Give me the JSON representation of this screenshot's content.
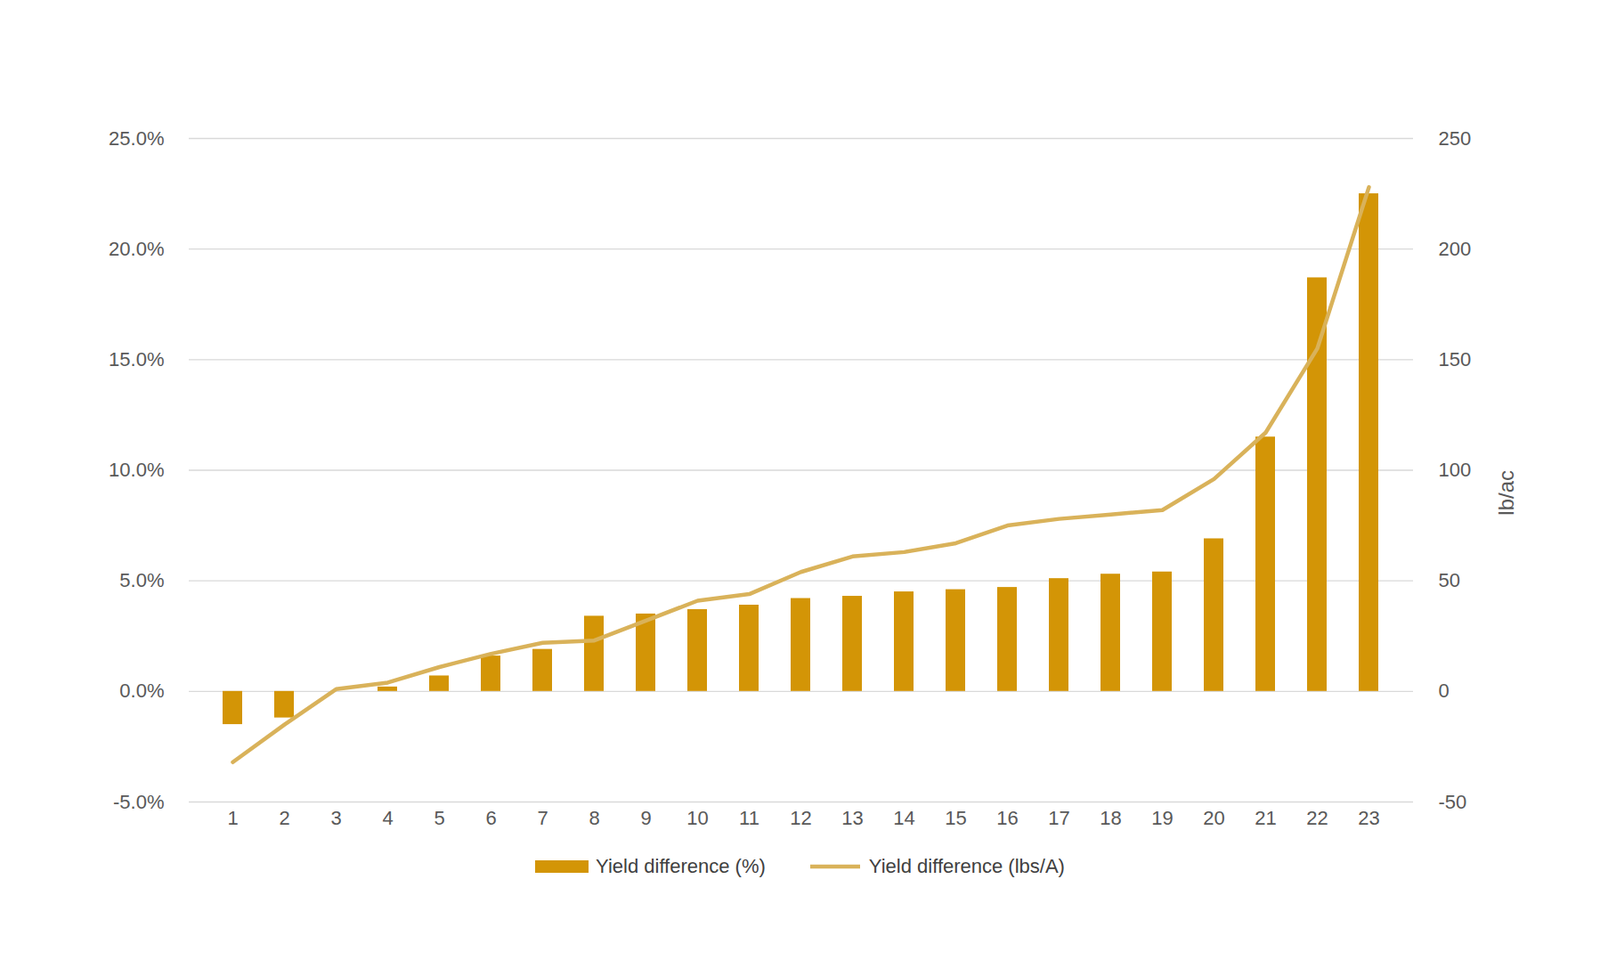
{
  "chart_data": {
    "type": "bar",
    "categories": [
      "1",
      "2",
      "3",
      "4",
      "5",
      "6",
      "7",
      "8",
      "9",
      "10",
      "11",
      "12",
      "13",
      "14",
      "15",
      "16",
      "17",
      "18",
      "19",
      "20",
      "21",
      "22",
      "23"
    ],
    "series": [
      {
        "name": "Yield difference (%)",
        "type": "bar",
        "color": "#D39506",
        "values": [
          -1.5,
          -1.2,
          0.0,
          0.2,
          0.7,
          1.6,
          1.9,
          3.4,
          3.5,
          3.7,
          3.9,
          4.2,
          4.3,
          4.5,
          4.6,
          4.7,
          5.1,
          5.3,
          5.4,
          6.9,
          11.5,
          18.7,
          22.5
        ]
      },
      {
        "name": "Yield difference (lbs/A)",
        "type": "line",
        "axis": "y2",
        "color": "#D9B25A",
        "values": [
          -32,
          -15,
          1,
          4,
          11,
          17,
          22,
          23,
          32,
          41,
          44,
          54,
          61,
          63,
          67,
          75,
          78,
          80,
          82,
          96,
          117,
          155,
          228
        ]
      }
    ],
    "ylim": [
      -5,
      25
    ],
    "yticks": [
      {
        "value": -5,
        "label": "-5.0%"
      },
      {
        "value": 0,
        "label": "0.0%"
      },
      {
        "value": 5,
        "label": "5.0%"
      },
      {
        "value": 10,
        "label": "10.0%"
      },
      {
        "value": 15,
        "label": "15.0%"
      },
      {
        "value": 20,
        "label": "20.0%"
      },
      {
        "value": 25,
        "label": "25.0%"
      }
    ],
    "y2lim": [
      -50,
      250
    ],
    "y2ticks": [
      -50,
      0,
      50,
      100,
      150,
      200,
      250
    ],
    "y2label": "lb/ac",
    "grid": true,
    "legend": "bottom"
  }
}
